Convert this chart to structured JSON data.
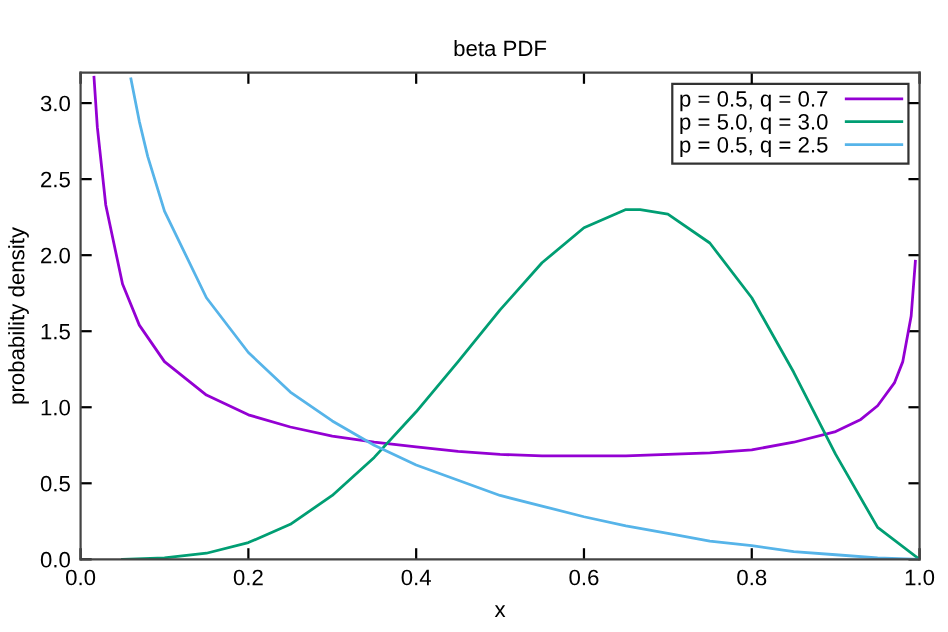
{
  "chart_data": {
    "type": "line",
    "title": "beta PDF",
    "xlabel": "x",
    "ylabel": "probability density",
    "xlim": [
      0.0,
      1.0
    ],
    "ylim": [
      0.0,
      3.2
    ],
    "xticks": [
      {
        "value": 0.0,
        "label": "0.0"
      },
      0.2,
      0.4,
      0.6,
      0.8,
      {
        "value": 1.0,
        "label": "1.0"
      }
    ],
    "yticks": [
      {
        "value": 0.0,
        "label": "0.0"
      },
      0.5,
      {
        "value": 1.0,
        "label": "1.0"
      },
      1.5,
      {
        "value": 2.0,
        "label": "2.0"
      },
      2.5,
      {
        "value": 3.0,
        "label": "3.0"
      }
    ],
    "grid": false,
    "legend": "top right",
    "marker": "none",
    "line_style": "solid",
    "series": [
      {
        "name": "p = 0.5, q = 0.7",
        "color": "#9400d3",
        "x": [
          0.016,
          0.02,
          0.03,
          0.05,
          0.07,
          0.1,
          0.15,
          0.2,
          0.25,
          0.3,
          0.35,
          0.4,
          0.45,
          0.5,
          0.55,
          0.6,
          0.65,
          0.7,
          0.75,
          0.8,
          0.85,
          0.9,
          0.93,
          0.95,
          0.97,
          0.98,
          0.99,
          0.995
        ],
        "values": [
          3.17,
          2.84,
          2.33,
          1.81,
          1.54,
          1.3,
          1.08,
          0.95,
          0.87,
          0.81,
          0.77,
          0.74,
          0.71,
          0.69,
          0.68,
          0.68,
          0.68,
          0.69,
          0.7,
          0.72,
          0.77,
          0.84,
          0.92,
          1.01,
          1.16,
          1.3,
          1.6,
          1.96
        ]
      },
      {
        "name": "p = 5.0, q = 3.0",
        "color": "#009e73",
        "x": [
          0.05,
          0.1,
          0.15,
          0.2,
          0.25,
          0.3,
          0.35,
          0.4,
          0.45,
          0.5,
          0.55,
          0.6,
          0.65,
          0.667,
          0.7,
          0.75,
          0.8,
          0.85,
          0.9,
          0.95,
          1.0
        ],
        "values": [
          0.0,
          0.01,
          0.04,
          0.11,
          0.23,
          0.42,
          0.67,
          0.97,
          1.3,
          1.64,
          1.95,
          2.18,
          2.3,
          2.3,
          2.27,
          2.08,
          1.72,
          1.23,
          0.69,
          0.21,
          0.0
        ]
      },
      {
        "name": "p = 0.5, q = 2.5",
        "color": "#56b4e9",
        "x": [
          0.06,
          0.07,
          0.08,
          0.1,
          0.15,
          0.2,
          0.25,
          0.3,
          0.35,
          0.4,
          0.45,
          0.5,
          0.55,
          0.6,
          0.65,
          0.7,
          0.75,
          0.8,
          0.85,
          0.9,
          0.95,
          1.0
        ],
        "values": [
          3.16,
          2.88,
          2.65,
          2.29,
          1.72,
          1.36,
          1.1,
          0.91,
          0.75,
          0.62,
          0.52,
          0.42,
          0.35,
          0.28,
          0.22,
          0.17,
          0.12,
          0.09,
          0.05,
          0.03,
          0.01,
          0.0
        ]
      }
    ]
  }
}
